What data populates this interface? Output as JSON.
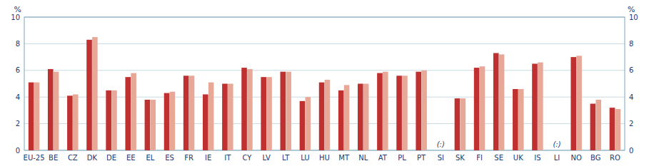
{
  "chart_data": {
    "type": "bar",
    "categories": [
      "EU-25",
      "BE",
      "CZ",
      "DK",
      "DE",
      "EE",
      "EL",
      "ES",
      "FR",
      "IE",
      "IT",
      "CY",
      "LV",
      "LT",
      "LU",
      "HU",
      "MT",
      "NL",
      "AT",
      "PL",
      "PT",
      "SI",
      "SK",
      "FI",
      "SE",
      "UK",
      "IS",
      "LI",
      "NO",
      "BG",
      "RO"
    ],
    "series": [
      {
        "color": "#bf3030",
        "values": [
          5.1,
          6.1,
          4.1,
          8.3,
          4.5,
          5.5,
          3.8,
          4.3,
          5.6,
          4.2,
          5.0,
          6.2,
          5.5,
          5.9,
          3.7,
          5.1,
          4.5,
          5.0,
          5.8,
          5.6,
          5.9,
          null,
          3.9,
          6.2,
          7.3,
          4.6,
          6.5,
          null,
          7.0,
          3.5,
          3.2
        ]
      },
      {
        "color": "#e8a898",
        "values": [
          5.1,
          5.9,
          4.2,
          8.5,
          4.5,
          5.8,
          3.8,
          4.4,
          5.6,
          5.1,
          5.0,
          6.1,
          5.5,
          5.9,
          4.0,
          5.3,
          4.9,
          5.0,
          5.9,
          5.6,
          6.0,
          null,
          3.9,
          6.3,
          7.2,
          4.6,
          6.6,
          null,
          7.1,
          3.8,
          3.1
        ]
      }
    ],
    "ylabel": "%",
    "y2label": "%",
    "ylim": [
      0,
      10
    ],
    "yticks": [
      0,
      2,
      4,
      6,
      8,
      10
    ],
    "y2lim": [
      0,
      10
    ],
    "y2ticks": [
      0,
      2,
      4,
      6,
      8,
      10
    ],
    "grid": true,
    "annotations": [
      {
        "text": "(:)",
        "x": "SI",
        "y": 0.15
      },
      {
        "text": "(:)",
        "x": "LI",
        "y": 0.15
      }
    ]
  }
}
